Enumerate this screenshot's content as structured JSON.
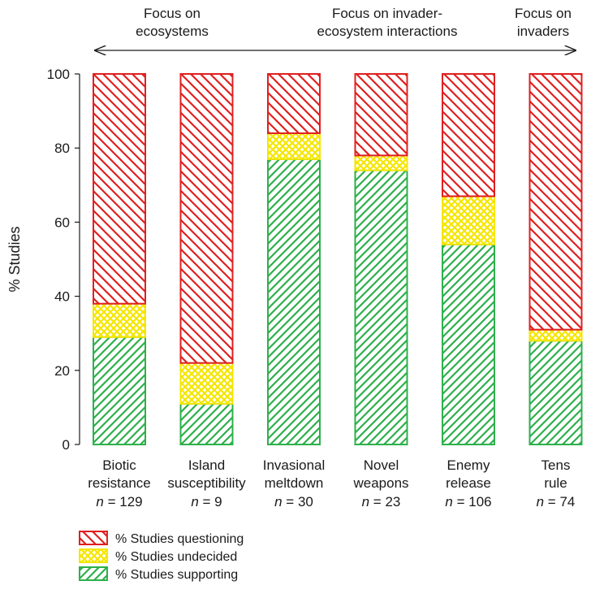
{
  "chart_data": {
    "type": "bar",
    "stacked": true,
    "ylabel": "% Studies",
    "ylim": [
      0,
      100
    ],
    "yticks": [
      0,
      20,
      40,
      60,
      80,
      100
    ],
    "categories": [
      {
        "line1": "Biotic",
        "line2": "resistance",
        "n_prefix": "n",
        "n_value": "= 129"
      },
      {
        "line1": "Island",
        "line2": "susceptibility",
        "n_prefix": "n",
        "n_value": "= 9"
      },
      {
        "line1": "Invasional",
        "line2": "meltdown",
        "n_prefix": "n",
        "n_value": "= 30"
      },
      {
        "line1": "Novel",
        "line2": "weapons",
        "n_prefix": "n",
        "n_value": "= 23"
      },
      {
        "line1": "Enemy",
        "line2": "release",
        "n_prefix": "n",
        "n_value": "= 106"
      },
      {
        "line1": "Tens",
        "line2": "rule",
        "n_prefix": "n",
        "n_value": "= 74"
      }
    ],
    "series": [
      {
        "name": "% Studies supporting",
        "color": "#2db04b",
        "pattern": "diag-left",
        "values": [
          29,
          11,
          77,
          74,
          54,
          28
        ]
      },
      {
        "name": "% Studies undecided",
        "color": "#f5e600",
        "pattern": "cross",
        "values": [
          9,
          11,
          7,
          4,
          13,
          3
        ]
      },
      {
        "name": "% Studies questioning",
        "color": "#e02020",
        "pattern": "diag-right",
        "values": [
          62,
          78,
          16,
          22,
          33,
          69
        ]
      }
    ],
    "legend_order": [
      2,
      1,
      0
    ],
    "legend_position": "bottom-left",
    "grid": false,
    "annotations": {
      "focus": [
        {
          "line1": "Focus on",
          "line2": "ecosystems"
        },
        {
          "line1": "Focus on invader-",
          "line2": "ecosystem interactions"
        },
        {
          "line1": "Focus on",
          "line2": "invaders"
        }
      ],
      "arrow": "double-headed"
    }
  }
}
